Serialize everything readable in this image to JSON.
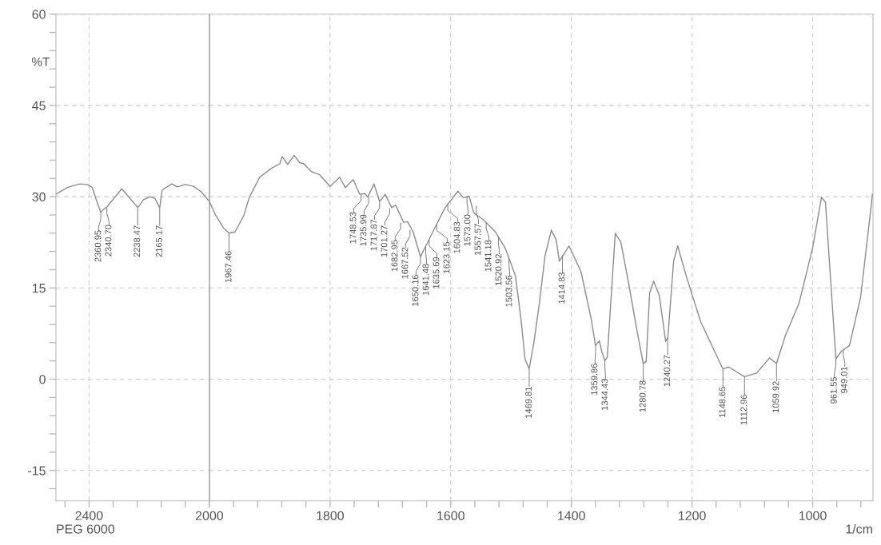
{
  "chart_data": [
    {
      "type": "line",
      "ylabel": "%T",
      "x": [
        2510,
        2472,
        2432,
        2405,
        2389,
        2376,
        2361,
        2352,
        2341,
        2291,
        2238,
        2219,
        2197,
        2181,
        2165,
        2157,
        2125,
        2107,
        2080,
        2053,
        2027,
        2000
      ],
      "values": [
        30.4,
        31.5,
        32.1,
        32.0,
        31.5,
        29.5,
        27.4,
        27.9,
        28.3,
        31.3,
        28.2,
        29.5,
        30.0,
        29.7,
        28.2,
        31.1,
        32.1,
        31.6,
        32.0,
        31.7,
        30.8,
        29.2
      ],
      "color": "#8c8c8c",
      "xlim": [
        2510,
        2000
      ],
      "xticks": [
        {
          "value": 2480,
          "label": null
        },
        2400,
        {
          "value": 2320,
          "label": null
        },
        {
          "value": 2240,
          "label": null
        },
        {
          "value": 2160,
          "label": null
        },
        {
          "value": 2080,
          "label": null
        },
        2000
      ],
      "ylim": [
        -20,
        60
      ],
      "yticks": [
        {
          "value": -18,
          "label": null
        },
        -15,
        {
          "value": -12,
          "label": null
        },
        {
          "value": -9,
          "label": null
        },
        {
          "value": -6,
          "label": null
        },
        {
          "value": -3,
          "label": null
        },
        0,
        {
          "value": 3,
          "label": null
        },
        {
          "value": 6,
          "label": null
        },
        {
          "value": 9,
          "label": null
        },
        {
          "value": 12,
          "label": null
        },
        15,
        {
          "value": 18,
          "label": null
        },
        {
          "value": 21,
          "label": null
        },
        {
          "value": 24,
          "label": null
        },
        {
          "value": 27,
          "label": null
        },
        30,
        {
          "value": 33,
          "label": null
        },
        {
          "value": 36,
          "label": null
        },
        {
          "value": 39,
          "label": null
        },
        {
          "value": 42,
          "label": null
        },
        45,
        {
          "value": 48,
          "label": null
        },
        {
          "value": 51,
          "label": null
        },
        {
          "value": 54,
          "label": null
        },
        {
          "value": 57,
          "label": null
        },
        60
      ],
      "grid": true,
      "line_style": "solid",
      "annotations": [
        {
          "text": "2360.95",
          "x": 2360.95,
          "y": 27.4
        },
        {
          "text": "2340.70",
          "x": 2340.7,
          "y": 28.3
        },
        {
          "text": "2238.47",
          "x": 2238.47,
          "y": 28.2
        },
        {
          "text": "2165.17",
          "x": 2165.17,
          "y": 28.2
        },
        "PEG 6000"
      ]
    },
    {
      "type": "line",
      "xlabel": "1/cm",
      "x": [
        2000,
        1989.4,
        1976.2,
        1967.5,
        1957.6,
        1943,
        1933.8,
        1916.6,
        1896.7,
        1883.4,
        1879.5,
        1870.2,
        1859.6,
        1850.3,
        1843.7,
        1830.5,
        1817.2,
        1800,
        1784.1,
        1774.8,
        1761.6,
        1751,
        1741.7,
        1737.7,
        1727.2,
        1717.9,
        1708.6,
        1698,
        1691.4,
        1678.1,
        1671.5,
        1662.3,
        1650,
        1645,
        1641.1,
        1627.8,
        1609.3,
        1588.1,
        1578.8,
        1569.5,
        1561.6,
        1545.7,
        1525.8,
        1509.9,
        1492.7,
        1483.4,
        1476.8,
        1470,
        1462.3,
        1453,
        1443.7,
        1433.1,
        1425.2,
        1419.9,
        1403.9,
        1384.1,
        1366.9,
        1360,
        1353.6,
        1349.7,
        1344.4,
        1340.4,
        1327.2,
        1317.9,
        1304.6,
        1291.4,
        1281,
        1276,
        1270.2,
        1263.6,
        1254.3,
        1243.7,
        1240,
        1230.5,
        1223.8,
        1207.9,
        1185.4,
        1149,
        1139.1,
        1113,
        1092.7,
        1071.5,
        1060,
        1045.1,
        1022.5,
        1000,
        985.4,
        978.8,
        961.5,
        952.3,
        939.1,
        920.6,
        903.3,
        901
      ],
      "values": [
        29.2,
        26.9,
        24.8,
        24.0,
        24.2,
        26.9,
        29.9,
        33.2,
        34.7,
        35.4,
        36.6,
        35.3,
        36.8,
        35.6,
        35.4,
        34.1,
        33.6,
        31.7,
        33.2,
        31.5,
        32.8,
        30.4,
        30.5,
        29.9,
        32.1,
        29.2,
        30.4,
        28.2,
        28.6,
        25.8,
        25.9,
        24.2,
        20.1,
        21.2,
        21.9,
        24.6,
        28.2,
        30.9,
        29.8,
        30.1,
        27.3,
        26.2,
        24.2,
        21.6,
        17.0,
        9.8,
        3.3,
        1.7,
        5.9,
        12.5,
        20.3,
        24.5,
        22.9,
        19.4,
        21.9,
        17.7,
        9.8,
        5.5,
        6.3,
        4.6,
        3.0,
        3.7,
        24.0,
        22.5,
        15.5,
        8.1,
        2.6,
        2.9,
        14.2,
        16.1,
        13.8,
        6.2,
        6.9,
        19.4,
        21.9,
        16.4,
        9.4,
        1.7,
        2.0,
        0.4,
        1.0,
        3.5,
        2.6,
        7.2,
        12.5,
        21.6,
        29.9,
        29.1,
        3.3,
        4.6,
        5.5,
        13.4,
        28.2,
        30.4
      ],
      "color": "#8c8c8c",
      "xlim": [
        2000,
        900
      ],
      "xticks": [
        {
          "value": 2000,
          "label": null
        },
        {
          "value": 1960,
          "label": null
        },
        {
          "value": 1920,
          "label": null
        },
        {
          "value": 1880,
          "label": null
        },
        {
          "value": 1840,
          "label": null
        },
        1800,
        {
          "value": 1760,
          "label": null
        },
        {
          "value": 1720,
          "label": null
        },
        {
          "value": 1680,
          "label": null
        },
        {
          "value": 1640,
          "label": null
        },
        1600,
        {
          "value": 1560,
          "label": null
        },
        {
          "value": 1520,
          "label": null
        },
        {
          "value": 1480,
          "label": null
        },
        {
          "value": 1440,
          "label": null
        },
        1400,
        {
          "value": 1360,
          "label": null
        },
        {
          "value": 1320,
          "label": null
        },
        {
          "value": 1280,
          "label": null
        },
        {
          "value": 1240,
          "label": null
        },
        1200,
        {
          "value": 1160,
          "label": null
        },
        {
          "value": 1120,
          "label": null
        },
        {
          "value": 1080,
          "label": null
        },
        {
          "value": 1040,
          "label": null
        },
        1000,
        {
          "value": 960,
          "label": null
        },
        {
          "value": 920,
          "label": null
        }
      ],
      "ylim": [
        -20,
        60
      ],
      "yticks": [
        -15,
        0,
        15,
        30,
        45,
        60
      ],
      "tick_labels": "x",
      "grid": true,
      "line_style": "solid",
      "ref_lines": [
        {
          "axis": "x",
          "value": 2000,
          "color": "#8c8c8c",
          "line_style": "solid"
        }
      ],
      "annotations": [
        {
          "text": "1967.46",
          "x": 1967.46,
          "y": 24.0
        },
        {
          "text": "1748.53",
          "x": 1748.53,
          "y": 30.4
        },
        {
          "text": "1735.99",
          "x": 1735.99,
          "y": 30.0
        },
        {
          "text": "1717.87",
          "x": 1717.87,
          "y": 29.2
        },
        {
          "text": "1701.27",
          "x": 1701.27,
          "y": 28.2
        },
        {
          "text": "1682.95",
          "x": 1682.95,
          "y": 25.8
        },
        {
          "text": "1667.52",
          "x": 1667.52,
          "y": 24.6
        },
        {
          "text": "1650.16",
          "x": 1650.16,
          "y": 20.1
        },
        {
          "text": "1641.48",
          "x": 1641.48,
          "y": 21.9
        },
        {
          "text": "1635.69",
          "x": 1635.69,
          "y": 23.0
        },
        {
          "text": "1623.15",
          "x": 1623.15,
          "y": 25.5
        },
        {
          "text": "1604.83",
          "x": 1604.83,
          "y": 28.8
        },
        {
          "text": "1573.00",
          "x": 1573.0,
          "y": 30.0
        },
        {
          "text": "1557.57",
          "x": 1557.57,
          "y": 28.5
        },
        {
          "text": "1541.18",
          "x": 1541.18,
          "y": 25.8
        },
        {
          "text": "1520.92",
          "x": 1520.92,
          "y": 23.5
        },
        {
          "text": "1503.56",
          "x": 1503.56,
          "y": 20.0
        },
        {
          "text": "1469.81",
          "x": 1469.81,
          "y": 1.7
        },
        {
          "text": "1414.83",
          "x": 1414.83,
          "y": 20.5
        },
        {
          "text": "1359.86",
          "x": 1359.86,
          "y": 5.5
        },
        {
          "text": "1344.43",
          "x": 1344.43,
          "y": 3.0
        },
        {
          "text": "1280.78",
          "x": 1280.78,
          "y": 2.7
        },
        {
          "text": "1240.27",
          "x": 1240.27,
          "y": 6.9
        },
        {
          "text": "1148.65",
          "x": 1148.65,
          "y": 1.7
        },
        {
          "text": "1112.96",
          "x": 1112.96,
          "y": 0.4
        },
        {
          "text": "1059.92",
          "x": 1059.92,
          "y": 2.6
        },
        {
          "text": "961.55",
          "x": 961.55,
          "y": 3.3
        },
        {
          "text": "949.01",
          "x": 949.01,
          "y": 5.0
        }
      ]
    }
  ]
}
